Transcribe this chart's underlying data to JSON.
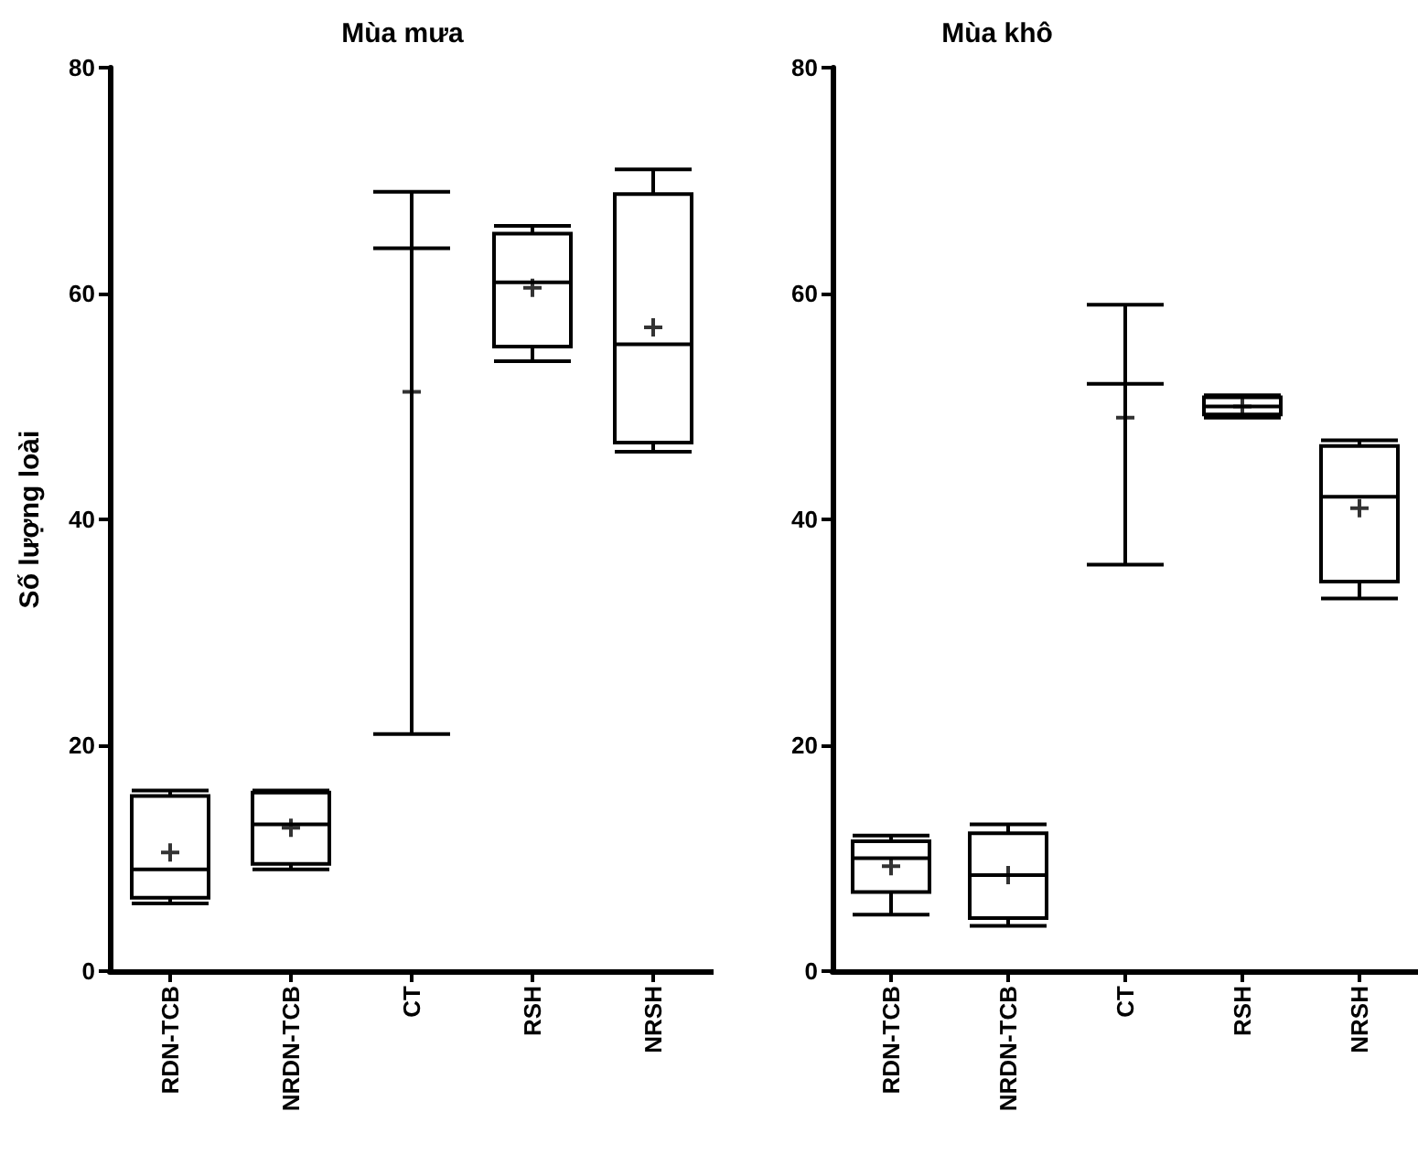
{
  "chart_data": [
    {
      "type": "box",
      "title": "Mùa mưa",
      "ylabel": "Số lượng loài",
      "categories": [
        "RDN-TCB",
        "NRDN-TCB",
        "CT",
        "RSH",
        "NRSH"
      ],
      "color": "#000000",
      "marker": "cross",
      "grid": false,
      "ylim": [
        0,
        80
      ],
      "yticks": [
        0,
        20,
        40,
        60,
        80
      ],
      "boxes": [
        {
          "low": 6,
          "q1": 6.5,
          "median": 9,
          "q3": 15.5,
          "high": 16,
          "mean": 10.5
        },
        {
          "low": 9,
          "q1": 9.5,
          "median": 13,
          "q3": 15.8,
          "high": 16,
          "mean": 12.7
        },
        {
          "low": 21,
          "q1": 64,
          "median": 64,
          "q3": 64,
          "high": 69,
          "mean": 51.3
        },
        {
          "low": 54,
          "q1": 55.3,
          "median": 61,
          "q3": 65.3,
          "high": 66,
          "mean": 60.5
        },
        {
          "low": 46,
          "q1": 46.8,
          "median": 55.5,
          "q3": 68.8,
          "high": 71,
          "mean": 57
        }
      ]
    },
    {
      "type": "box",
      "title": "Mùa khô",
      "categories": [
        "RDN-TCB",
        "NRDN-TCB",
        "CT",
        "RSH",
        "NRSH"
      ],
      "color": "#000000",
      "marker": "cross",
      "grid": false,
      "ylim": [
        0,
        80
      ],
      "yticks": [
        0,
        20,
        40,
        60,
        80
      ],
      "boxes": [
        {
          "low": 5,
          "q1": 7,
          "median": 10,
          "q3": 11.5,
          "high": 12,
          "mean": 9.3
        },
        {
          "low": 4,
          "q1": 4.7,
          "median": 8.5,
          "q3": 12.2,
          "high": 13,
          "mean": 8.5
        },
        {
          "low": 36,
          "q1": 52,
          "median": 52,
          "q3": 52,
          "high": 59,
          "mean": 49
        },
        {
          "low": 49,
          "q1": 49.3,
          "median": 50,
          "q3": 50.8,
          "high": 51,
          "mean": 50
        },
        {
          "low": 33,
          "q1": 34.5,
          "median": 42,
          "q3": 46.5,
          "high": 47,
          "mean": 41
        }
      ]
    }
  ]
}
